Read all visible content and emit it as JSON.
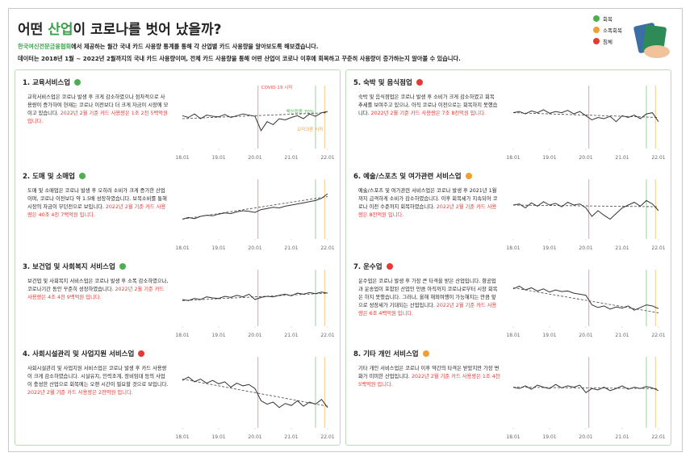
{
  "header": {
    "title": [
      "어떤 ",
      "산업",
      "이 코로나를 벗어 났을까?"
    ],
    "subtitle": [
      "한국여신전문금융협회",
      "에서 제공하는 월간 국내 카드 사용량 통계를 통해 각 산업별 카드 사용량을 알아보도록 해보겠습니다."
    ],
    "subtitle2": "데이터는 2018년 1월 ~ 2022년 2월까지의 국내 카드 사용량이며, 전체 카드 사용량을 통해 어떤 산업이 코로나 이후에 회복하고 꾸준히 사용량이 증가하는지 알아볼 수 있습니다."
  },
  "legend": [
    {
      "label": "회복",
      "color": "#4caf50"
    },
    {
      "label": "소폭회복",
      "color": "#f0a030"
    },
    {
      "label": "침체",
      "color": "#e53935"
    }
  ],
  "events": [
    {
      "label": "COVID-19 시작",
      "x": 12.5,
      "color": "#e8504a"
    },
    {
      "label": "백신접종 70%",
      "x": 22,
      "color": "#4caf50"
    },
    {
      "label": "오미크론 시작",
      "x": 23.5,
      "color": "#f0a030"
    }
  ],
  "panels": [
    {
      "title": "1. 교육서비스업",
      "color": "#4caf50",
      "desc": "교육서비스업은 코로나 발생 후 크게 감소하였으나 점차적으로 사용량이 증가하여 현재는 코로나 이전보다 더 크게 자금이 시장에 모이고 있습니다.",
      "highlight": "2022년 2월 기준 카드 사용량은 1조 2천 5백억원 입니다."
    },
    {
      "title": "2. 도매 및 소매업",
      "color": "#4caf50",
      "desc": "도매 및 소매업은 코로나 발생 후 오히려 소비가 크게 증가한 산업이며, 코로나 이전보다 약 1.5배 성장하였습니다. 보복소비를 통해 시장의 자금이 무던전으로 보입니다.",
      "highlight": "2022년 2월 기준 카드 사용량은 40조 4천 7백억원 입니다."
    },
    {
      "title": "3. 보건업 및 사회복지 서비스업",
      "color": "#4caf50",
      "desc": "보건업 및 사회복지 서비스업은 코로나 발생 후 소폭 감소하였으나, 코로나기간 동안 꾸준히 성장하였습니다.",
      "highlight": "2022년 2월 기준 카드 사용량은 4조 4천 9백억원 입니다."
    },
    {
      "title": "4. 사회시설관리 및 사업지원 서비스업",
      "color": "#e53935",
      "desc": "사회시설관리 및 사업지원 서비스업은 코로나 발생 후 카드 사용량이 크게 감소하였습니다. 시설유지, 인력조계, 장비임대 등의 사업이 충성한 산업으로 회복에는 오랜 시간이 필요할 것으로 보입니다.",
      "highlight": "2022년 2월 기준 카드 사용량은 2천억원 입니다."
    },
    {
      "title": "5. 숙박 및 음식점업",
      "color": "#e53935",
      "desc": "숙박 및 음식점업은 코로나 발생 후 소비가 크게 감소하였고 회복 추세를 보여주고 있으나, 아직 코로나 이전으로는 회복하지 못했습니다.",
      "highlight": "2022년 2월 기준 카드 사용량은 7조 8천억원 입니다."
    },
    {
      "title": "6. 예술/스포츠 및 여가관련 서비스업",
      "color": "#f0a030",
      "desc": "예술/스포츠 및 여가관련 서비스업은 코로나 발생 후 2021년 1월까지 급격하게 소비가 감소하였습니다. 이후 회복세가 지속되어 코로나 이전 수준까지 회복하였습니다.",
      "highlight": "2022년 2월 기준 카드 사용량은 8천억원 입니다."
    },
    {
      "title": "7. 운수업",
      "color": "#e53935",
      "desc": "운수업은 코로나 발생 후 가장 큰 타격을 받은 산업입니다. 항공업과 운송업이 포함된 산업인 만큼 아직까지 코로나로부터 시장 회복은 하지 못했습니다. 그러나, 올해 해외여행이 가능해지는 만큼 앞으로 성장세가 기대되는 산업입니다.",
      "highlight": "2022년 2월 기준 카드 사용량은 6조 4백억원 입니다."
    },
    {
      "title": "8. 기타 개인 서비스업",
      "color": "#f0a030",
      "desc": "기타 개인 서비스업은 코로나 이후 약간의 타격은 받았지만 가장 변화가 미미한 산업입니다.",
      "highlight": "2022년 2월 기준 카드 사용량은 1조 4천 5백억원 입니다."
    }
  ],
  "chart_data": [
    {
      "type": "line",
      "color": "#333333",
      "values": [
        55,
        52,
        58,
        50,
        56,
        54,
        53,
        57,
        52,
        55,
        58,
        56,
        54,
        30,
        45,
        40,
        50,
        48,
        52,
        55,
        50,
        58,
        54,
        60,
        62
      ],
      "trend": [
        50,
        60
      ],
      "xlim": [
        0,
        24
      ],
      "ylim": [
        0,
        100
      ],
      "xticks": [
        {
          "value": 0,
          "label": "18.01"
        },
        {
          "value": 6,
          "label": "19.01"
        },
        {
          "value": 12,
          "label": "20.01"
        },
        {
          "value": 18,
          "label": "21.01"
        },
        {
          "value": 24,
          "label": "22.01"
        }
      ]
    },
    {
      "type": "line",
      "color": "#333333",
      "values": [
        35,
        38,
        36,
        40,
        42,
        41,
        44,
        46,
        45,
        48,
        50,
        49,
        47,
        52,
        54,
        56,
        55,
        58,
        60,
        62,
        64,
        66,
        68,
        72,
        80
      ],
      "trend": [
        35,
        75
      ],
      "xlim": [
        0,
        24
      ],
      "ylim": [
        0,
        100
      ],
      "xticks": [
        {
          "value": 0,
          "label": "18.01"
        },
        {
          "value": 6,
          "label": "19.01"
        },
        {
          "value": 12,
          "label": "20.01"
        },
        {
          "value": 18,
          "label": "21.01"
        },
        {
          "value": 24,
          "label": "22.01"
        }
      ]
    },
    {
      "type": "line",
      "color": "#333333",
      "values": [
        50,
        48,
        52,
        50,
        55,
        53,
        52,
        56,
        54,
        58,
        55,
        60,
        50,
        54,
        56,
        55,
        58,
        60,
        57,
        62,
        60,
        63,
        61,
        64,
        62
      ],
      "trend": [
        48,
        62
      ],
      "xlim": [
        0,
        24
      ],
      "ylim": [
        0,
        100
      ],
      "xticks": [
        {
          "value": 0,
          "label": "18.01"
        },
        {
          "value": 6,
          "label": "19.01"
        },
        {
          "value": 12,
          "label": "20.01"
        },
        {
          "value": 18,
          "label": "21.01"
        },
        {
          "value": 24,
          "label": "22.01"
        }
      ]
    },
    {
      "type": "line",
      "color": "#333333",
      "values": [
        70,
        75,
        68,
        72,
        66,
        70,
        65,
        68,
        60,
        66,
        62,
        64,
        58,
        40,
        35,
        38,
        30,
        36,
        33,
        40,
        32,
        38,
        35,
        42,
        30
      ],
      "trend": [
        72,
        32
      ],
      "xlim": [
        0,
        24
      ],
      "ylim": [
        0,
        100
      ],
      "xticks": [
        {
          "value": 0,
          "label": "18.01"
        },
        {
          "value": 6,
          "label": "19.01"
        },
        {
          "value": 12,
          "label": "20.01"
        },
        {
          "value": 18,
          "label": "21.01"
        },
        {
          "value": 24,
          "label": "22.01"
        }
      ]
    },
    {
      "type": "line",
      "color": "#333333",
      "values": [
        60,
        62,
        58,
        63,
        60,
        65,
        59,
        62,
        60,
        64,
        58,
        62,
        55,
        48,
        52,
        50,
        54,
        45,
        55,
        52,
        56,
        50,
        58,
        60,
        45
      ],
      "trend": [
        60,
        52
      ],
      "xlim": [
        0,
        24
      ],
      "ylim": [
        0,
        100
      ],
      "xticks": [
        {
          "value": 0,
          "label": "18.01"
        },
        {
          "value": 6,
          "label": "19.01"
        },
        {
          "value": 12,
          "label": "20.01"
        },
        {
          "value": 18,
          "label": "21.01"
        },
        {
          "value": 24,
          "label": "22.01"
        }
      ]
    },
    {
      "type": "line",
      "color": "#333333",
      "values": [
        60,
        62,
        55,
        64,
        58,
        66,
        60,
        63,
        57,
        65,
        60,
        62,
        55,
        40,
        50,
        42,
        35,
        45,
        55,
        60,
        65,
        58,
        68,
        62,
        50
      ],
      "trend": [
        60,
        57
      ],
      "xlim": [
        0,
        24
      ],
      "ylim": [
        0,
        100
      ],
      "xticks": [
        {
          "value": 0,
          "label": "18.01"
        },
        {
          "value": 6,
          "label": "19.01"
        },
        {
          "value": 12,
          "label": "20.01"
        },
        {
          "value": 18,
          "label": "21.01"
        },
        {
          "value": 24,
          "label": "22.01"
        }
      ]
    },
    {
      "type": "line",
      "color": "#333333",
      "values": [
        70,
        75,
        68,
        72,
        66,
        70,
        64,
        68,
        65,
        66,
        62,
        60,
        58,
        40,
        35,
        38,
        32,
        36,
        34,
        38,
        30,
        35,
        40,
        38,
        33
      ],
      "trend": [
        72,
        25
      ],
      "xlim": [
        0,
        24
      ],
      "ylim": [
        0,
        100
      ],
      "xticks": [
        {
          "value": 0,
          "label": "18.01"
        },
        {
          "value": 6,
          "label": "19.01"
        },
        {
          "value": 12,
          "label": "20.01"
        },
        {
          "value": 18,
          "label": "21.01"
        },
        {
          "value": 24,
          "label": "22.01"
        }
      ]
    },
    {
      "type": "line",
      "color": "#333333",
      "values": [
        60,
        58,
        62,
        57,
        63,
        60,
        58,
        64,
        59,
        62,
        60,
        63,
        52,
        58,
        56,
        60,
        55,
        58,
        62,
        57,
        60,
        58,
        61,
        59,
        55
      ],
      "trend": [
        60,
        58
      ],
      "xlim": [
        0,
        24
      ],
      "ylim": [
        0,
        100
      ],
      "xticks": [
        {
          "value": 0,
          "label": "18.01"
        },
        {
          "value": 6,
          "label": "19.01"
        },
        {
          "value": 12,
          "label": "20.01"
        },
        {
          "value": 18,
          "label": "21.01"
        },
        {
          "value": 24,
          "label": "22.01"
        }
      ]
    }
  ]
}
